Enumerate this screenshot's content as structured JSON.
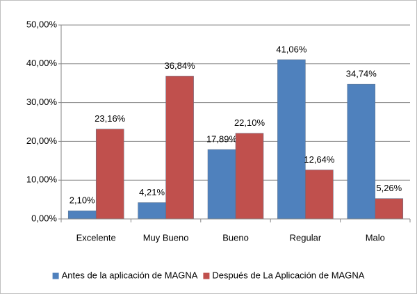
{
  "chart_data": {
    "type": "bar",
    "categories": [
      "Excelente",
      "Muy Bueno",
      "Bueno",
      "Regular",
      "Malo"
    ],
    "series": [
      {
        "name": "Antes de la aplicación de MAGNA",
        "color": "#4f81bd",
        "values": [
          2.1,
          4.21,
          17.89,
          41.06,
          34.74
        ],
        "value_labels": [
          "2,10%",
          "4,21%",
          "17,89%",
          "41,06%",
          "34,74%"
        ]
      },
      {
        "name": "Después de La Aplicación de MAGNA",
        "color": "#c0504d",
        "values": [
          23.16,
          36.84,
          22.1,
          12.64,
          5.26
        ],
        "value_labels": [
          "23,16%",
          "36,84%",
          "22,10%",
          "12,64%",
          "5,26%"
        ]
      }
    ],
    "ylim": [
      0,
      50
    ],
    "yticks": [
      {
        "value": 0,
        "label": "0,00%"
      },
      {
        "value": 10,
        "label": "10,00%"
      },
      {
        "value": 20,
        "label": "20,00%"
      },
      {
        "value": 30,
        "label": "30,00%"
      },
      {
        "value": 40,
        "label": "40,00%"
      },
      {
        "value": 50,
        "label": "50,00%"
      }
    ],
    "grid": true,
    "legend": "bottom"
  }
}
